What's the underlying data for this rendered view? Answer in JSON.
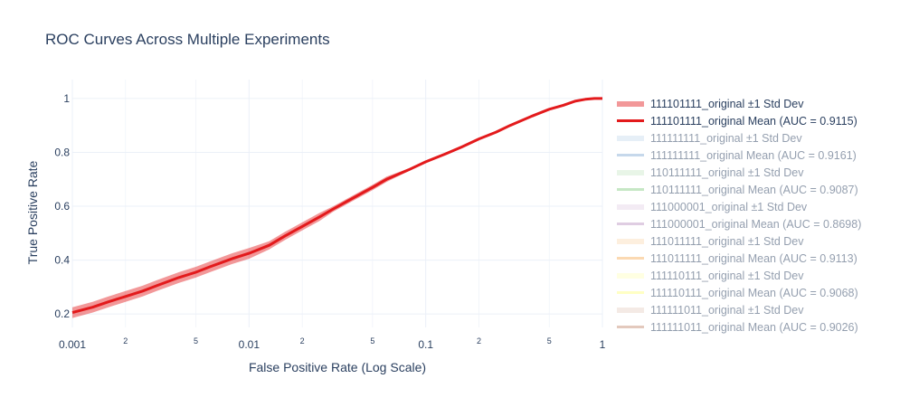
{
  "title": "ROC Curves Across Multiple Experiments",
  "chart_data": {
    "type": "line",
    "title": "ROC Curves Across Multiple Experiments",
    "xlabel": "False Positive Rate (Log Scale)",
    "ylabel": "True Positive Rate",
    "x_scale": "log",
    "xlim": [
      0.001,
      1
    ],
    "ylim": [
      0.15,
      1.03
    ],
    "grid": true,
    "legend_position": "right",
    "x_ticks": [
      {
        "value": 0.001,
        "label": "0.001",
        "major": true
      },
      {
        "value": 0.002,
        "label": "2",
        "major": false
      },
      {
        "value": 0.005,
        "label": "5",
        "major": false
      },
      {
        "value": 0.01,
        "label": "0.01",
        "major": true
      },
      {
        "value": 0.02,
        "label": "2",
        "major": false
      },
      {
        "value": 0.05,
        "label": "5",
        "major": false
      },
      {
        "value": 0.1,
        "label": "0.1",
        "major": true
      },
      {
        "value": 0.2,
        "label": "2",
        "major": false
      },
      {
        "value": 0.5,
        "label": "5",
        "major": false
      },
      {
        "value": 1,
        "label": "1",
        "major": true
      }
    ],
    "y_ticks": [
      {
        "value": 0.2,
        "label": "0.2"
      },
      {
        "value": 0.4,
        "label": "0.4"
      },
      {
        "value": 0.6,
        "label": "0.6"
      },
      {
        "value": 0.8,
        "label": "0.8"
      },
      {
        "value": 1,
        "label": "1"
      }
    ],
    "series": [
      {
        "name": "111101111_original Mean (AUC = 0.9115)",
        "band_name": "111101111_original ±1 Std Dev",
        "color": "#e31a1c",
        "band_color": "#f4a3a4",
        "visible": true,
        "x": [
          0.001,
          0.0013,
          0.0016,
          0.002,
          0.0025,
          0.003,
          0.004,
          0.005,
          0.006,
          0.008,
          0.01,
          0.013,
          0.016,
          0.02,
          0.025,
          0.03,
          0.04,
          0.05,
          0.06,
          0.08,
          0.1,
          0.13,
          0.16,
          0.2,
          0.25,
          0.3,
          0.4,
          0.5,
          0.6,
          0.7,
          0.8,
          0.9,
          1.0
        ],
        "y": [
          0.205,
          0.225,
          0.245,
          0.265,
          0.285,
          0.305,
          0.335,
          0.355,
          0.375,
          0.405,
          0.425,
          0.455,
          0.49,
          0.525,
          0.56,
          0.59,
          0.635,
          0.67,
          0.7,
          0.735,
          0.765,
          0.795,
          0.82,
          0.85,
          0.875,
          0.9,
          0.935,
          0.96,
          0.975,
          0.99,
          0.997,
          1.0,
          1.0
        ],
        "y_upper": [
          0.225,
          0.245,
          0.265,
          0.285,
          0.305,
          0.325,
          0.355,
          0.375,
          0.395,
          0.425,
          0.445,
          0.47,
          0.505,
          0.54,
          0.575,
          0.6,
          0.645,
          0.68,
          0.71,
          0.74,
          0.77,
          0.8,
          0.825,
          0.852,
          0.877,
          0.902,
          0.937,
          0.962,
          0.977,
          0.991,
          0.998,
          1.0,
          1.0
        ],
        "y_lower": [
          0.185,
          0.205,
          0.225,
          0.245,
          0.265,
          0.285,
          0.315,
          0.335,
          0.355,
          0.385,
          0.405,
          0.44,
          0.475,
          0.51,
          0.545,
          0.58,
          0.625,
          0.66,
          0.69,
          0.73,
          0.76,
          0.79,
          0.815,
          0.848,
          0.873,
          0.898,
          0.933,
          0.958,
          0.973,
          0.989,
          0.996,
          1.0,
          1.0
        ]
      },
      {
        "name": "111111111_original Mean (AUC = 0.9161)",
        "band_name": "111111111_original ±1 Std Dev",
        "color": "#8fb3d9",
        "band_color": "#cfe0f1",
        "visible": false
      },
      {
        "name": "110111111_original Mean (AUC = 0.9087)",
        "band_name": "110111111_original ±1 Std Dev",
        "color": "#8fd08d",
        "band_color": "#d2edd1",
        "visible": false
      },
      {
        "name": "111000001_original Mean (AUC = 0.8698)",
        "band_name": "111000001_original ±1 Std Dev",
        "color": "#c19cc7",
        "band_color": "#e8d8ea",
        "visible": false
      },
      {
        "name": "111011111_original Mean (AUC = 0.9113)",
        "band_name": "111011111_original ±1 Std Dev",
        "color": "#f8b567",
        "band_color": "#fde0bf",
        "visible": false
      },
      {
        "name": "111110111_original Mean (AUC = 0.9068)",
        "band_name": "111110111_original ±1 Std Dev",
        "color": "#ffff8a",
        "band_color": "#ffffc7",
        "visible": false
      },
      {
        "name": "111111011_original Mean (AUC = 0.9026)",
        "band_name": "111111011_original ±1 Std Dev",
        "color": "#c8957d",
        "band_color": "#ead6cc",
        "visible": false
      }
    ]
  }
}
